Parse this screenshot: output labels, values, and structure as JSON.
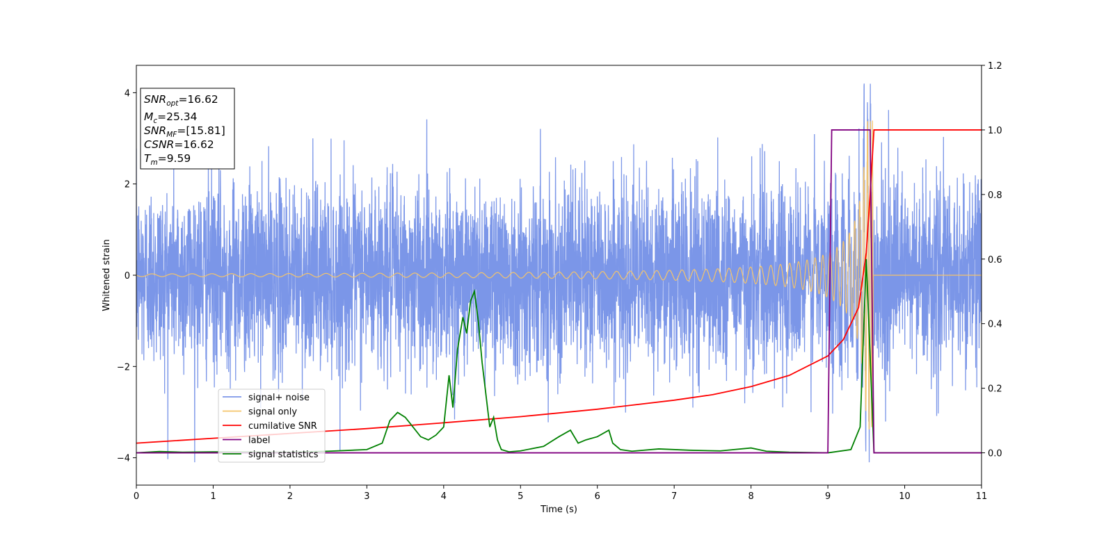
{
  "chart_data": {
    "type": "line",
    "xlabel": "Time (s)",
    "ylabel": "Whitened strain",
    "xlim": [
      0,
      11
    ],
    "ylim": [
      -4.6,
      4.6
    ],
    "y2lim": [
      -0.1,
      1.2
    ],
    "x_ticks": [
      "0",
      "1",
      "2",
      "3",
      "4",
      "5",
      "6",
      "7",
      "8",
      "9",
      "10",
      "11"
    ],
    "y_ticks": [
      "4",
      "2",
      "0",
      "−2",
      "−4"
    ],
    "y2_ticks": [
      "1.2",
      "1.0",
      "0.8",
      "0.6",
      "0.4",
      "0.2",
      "0.0"
    ],
    "legend_position": "lower-left",
    "info_box": {
      "snr_opt": {
        "base": "SNR",
        "sub": "opt",
        "value": "=16.62"
      },
      "mc": {
        "base": "M",
        "sub": "c",
        "value": "=25.34"
      },
      "snr_mf": {
        "base": "SNR",
        "sub": "MF",
        "value": "=[15.81]"
      },
      "csnr": {
        "base": "CSNR",
        "sub": "",
        "value": "=16.62"
      },
      "tm": {
        "base": "T",
        "sub": "m",
        "value": "=9.59"
      }
    },
    "series": [
      {
        "name": "signal+ noise",
        "color": "#7b96e8",
        "axis": "left",
        "description_envelope": {
          "typical_amplitude": 2.2,
          "max": 4.2,
          "min": -4.1
        }
      },
      {
        "name": "signal only",
        "color": "#f5c46a",
        "axis": "left",
        "chirp": {
          "t_merge": 9.59,
          "start_amplitude": 0.03,
          "peak_amplitude": 3.4
        }
      },
      {
        "name": "cumilative SNR",
        "color": "#ff0000",
        "axis": "right",
        "x": [
          0,
          1,
          2,
          3,
          4,
          5,
          6,
          7,
          7.5,
          8,
          8.5,
          9,
          9.2,
          9.4,
          9.5,
          9.55,
          9.6,
          11
        ],
        "y": [
          0.03,
          0.045,
          0.06,
          0.075,
          0.093,
          0.112,
          0.135,
          0.163,
          0.18,
          0.205,
          0.24,
          0.3,
          0.35,
          0.45,
          0.62,
          0.8,
          1.0,
          1.0
        ]
      },
      {
        "name": "label",
        "color": "#800080",
        "axis": "right",
        "x": [
          0,
          9.0,
          9.05,
          9.55,
          9.6,
          11
        ],
        "y": [
          0.0,
          0.0,
          1.0,
          1.0,
          0.0,
          0.0
        ]
      },
      {
        "name": "signal statistics",
        "color": "#008000",
        "axis": "right",
        "x": [
          0,
          0.3,
          0.6,
          1.0,
          2.0,
          2.5,
          3.0,
          3.2,
          3.3,
          3.4,
          3.5,
          3.6,
          3.7,
          3.8,
          3.9,
          4.0,
          4.07,
          4.12,
          4.18,
          4.25,
          4.3,
          4.35,
          4.4,
          4.45,
          4.5,
          4.6,
          4.65,
          4.7,
          4.75,
          4.85,
          5.0,
          5.3,
          5.5,
          5.65,
          5.75,
          5.85,
          6.0,
          6.15,
          6.2,
          6.3,
          6.45,
          6.8,
          7.2,
          7.6,
          8.0,
          8.2,
          8.5,
          9.0,
          9.3,
          9.42,
          9.5,
          9.55,
          9.6,
          11
        ],
        "y": [
          0.0,
          0.004,
          0.002,
          0.003,
          0.002,
          0.005,
          0.01,
          0.03,
          0.1,
          0.125,
          0.11,
          0.08,
          0.05,
          0.04,
          0.055,
          0.08,
          0.24,
          0.14,
          0.32,
          0.42,
          0.37,
          0.47,
          0.5,
          0.41,
          0.28,
          0.08,
          0.11,
          0.04,
          0.01,
          0.003,
          0.006,
          0.02,
          0.05,
          0.07,
          0.03,
          0.04,
          0.05,
          0.07,
          0.03,
          0.01,
          0.005,
          0.012,
          0.008,
          0.006,
          0.015,
          0.005,
          0.002,
          0.0,
          0.01,
          0.08,
          0.6,
          0.3,
          0.0,
          0.0
        ]
      }
    ]
  }
}
